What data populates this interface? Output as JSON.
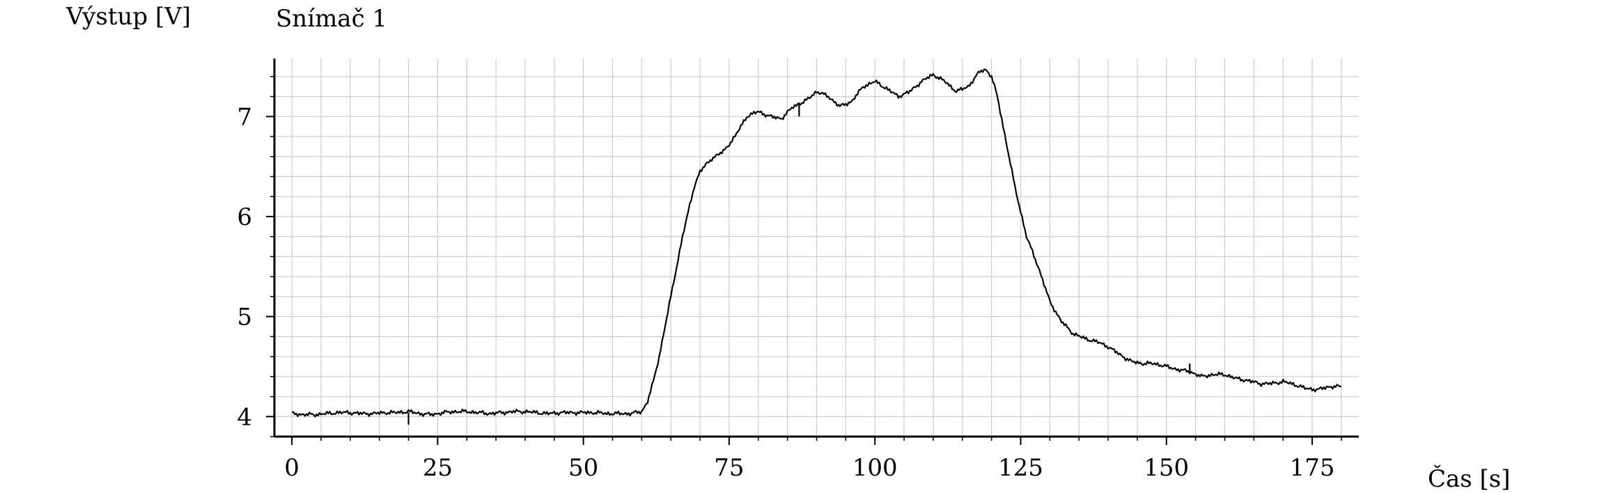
{
  "chart_data": {
    "type": "line",
    "title": "Snímač 1",
    "xlabel": "Čas [s]",
    "ylabel": "Výstup [V]",
    "xlim": [
      -3,
      183
    ],
    "ylim": [
      3.8,
      7.58
    ],
    "x_ticks": [
      0,
      25,
      50,
      75,
      100,
      125,
      150,
      175
    ],
    "x_tick_labels": [
      "0",
      "25",
      "50",
      "75",
      "100",
      "125",
      "150",
      "175"
    ],
    "x_minor_step": 5,
    "y_ticks": [
      4,
      5,
      6,
      7
    ],
    "y_tick_labels": [
      "4",
      "5",
      "6",
      "7"
    ],
    "y_minor_step": 0.2,
    "grid": true,
    "legend": "none",
    "colors": {
      "line": "#000000",
      "grid": "#cccccc",
      "axis": "#000000"
    },
    "series": [
      {
        "x": [
          0,
          2,
          4,
          6,
          8,
          10,
          12,
          14,
          16,
          18,
          20,
          22,
          24,
          26,
          28,
          30,
          32,
          34,
          36,
          38,
          40,
          42,
          44,
          46,
          48,
          50,
          52,
          54,
          56,
          58,
          60,
          61,
          62,
          63,
          64,
          65,
          66,
          67,
          68,
          69,
          70,
          72,
          74,
          76,
          78,
          80,
          82,
          84,
          86,
          88,
          90,
          92,
          94,
          96,
          98,
          100,
          102,
          104,
          106,
          108,
          110,
          112,
          114,
          116,
          118,
          119,
          120,
          121,
          122,
          123,
          124,
          125,
          126,
          128,
          130,
          132,
          134,
          136,
          138,
          140,
          142,
          144,
          146,
          148,
          150,
          152,
          154,
          156,
          158,
          160,
          162,
          164,
          166,
          168,
          170,
          172,
          174,
          176,
          178,
          180
        ],
        "y": [
          4.03,
          4.02,
          4.02,
          4.03,
          4.04,
          4.04,
          4.03,
          4.03,
          4.04,
          4.04,
          4.05,
          4.03,
          4.02,
          4.04,
          4.05,
          4.05,
          4.04,
          4.03,
          4.04,
          4.05,
          4.05,
          4.04,
          4.03,
          4.04,
          4.04,
          4.04,
          4.04,
          4.03,
          4.03,
          4.03,
          4.05,
          4.15,
          4.35,
          4.6,
          4.9,
          5.2,
          5.5,
          5.8,
          6.05,
          6.3,
          6.45,
          6.58,
          6.65,
          6.8,
          7.0,
          7.05,
          7.0,
          6.98,
          7.1,
          7.15,
          7.25,
          7.2,
          7.1,
          7.15,
          7.3,
          7.35,
          7.28,
          7.2,
          7.25,
          7.35,
          7.42,
          7.35,
          7.25,
          7.3,
          7.45,
          7.47,
          7.4,
          7.2,
          6.9,
          6.6,
          6.3,
          6.05,
          5.8,
          5.5,
          5.15,
          4.95,
          4.83,
          4.78,
          4.75,
          4.7,
          4.62,
          4.55,
          4.53,
          4.53,
          4.5,
          4.47,
          4.45,
          4.4,
          4.42,
          4.42,
          4.38,
          4.36,
          4.33,
          4.33,
          4.35,
          4.32,
          4.28,
          4.27,
          4.3,
          4.3
        ]
      }
    ],
    "spikes": [
      {
        "x": 20,
        "y_from": 4.04,
        "y_to": 3.92
      },
      {
        "x": 87,
        "y_from": 7.0,
        "y_to": 7.14
      },
      {
        "x": 154,
        "y_from": 4.45,
        "y_to": 4.53
      }
    ]
  }
}
